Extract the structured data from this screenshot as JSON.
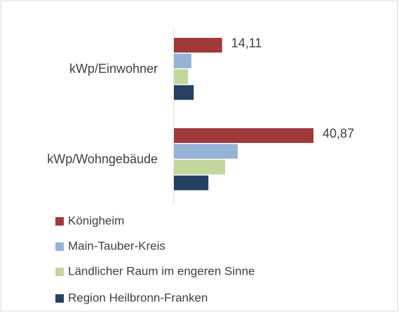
{
  "chart_data": {
    "type": "bar",
    "orientation": "horizontal",
    "categories": [
      "kWp/Einwohner",
      "kWp/Wohngebäude"
    ],
    "series": [
      {
        "name": "Königheim",
        "color": "#a0393a",
        "values": [
          14.11,
          40.87
        ],
        "value_labels": [
          "14,11",
          "40,87"
        ]
      },
      {
        "name": "Main-Tauber-Kreis",
        "color": "#95b3d7",
        "values": [
          5.1,
          18.7
        ]
      },
      {
        "name": "Ländlicher Raum im engeren Sinne",
        "color": "#c3d69b",
        "values": [
          4.1,
          15.0
        ]
      },
      {
        "name": "Region Heilbronn-Franken",
        "color": "#254061",
        "values": [
          5.8,
          10.1
        ]
      }
    ],
    "xlim": [
      0,
      50
    ]
  }
}
